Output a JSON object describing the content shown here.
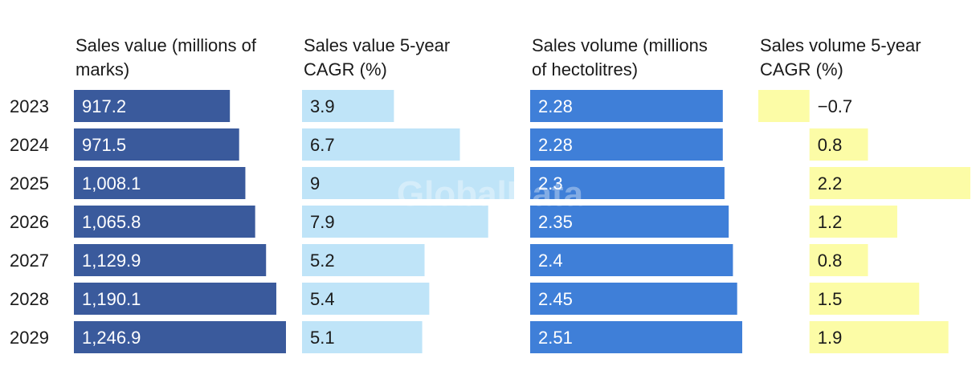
{
  "chart_data": {
    "type": "bar",
    "orientation": "horizontal",
    "categories": [
      "2023",
      "2024",
      "2025",
      "2026",
      "2027",
      "2028",
      "2029"
    ],
    "series": [
      {
        "name": "Sales value (millions of marks)",
        "header": [
          "Sales value (millions of",
          "marks)"
        ],
        "values": [
          917.2,
          971.5,
          1008.1,
          1065.8,
          1129.9,
          1190.1,
          1246.9
        ],
        "labels": [
          "917.2",
          "971.5",
          "1,008.1",
          "1,065.8",
          "1,129.9",
          "1,190.1",
          "1,246.9"
        ],
        "xlim": [
          0,
          1246.9
        ],
        "color": "#3a5a9c",
        "text_color": "#ffffff"
      },
      {
        "name": "Sales value 5-year CAGR (%)",
        "header": [
          "Sales value 5-year",
          "CAGR (%)"
        ],
        "values": [
          3.9,
          6.7,
          9,
          7.9,
          5.2,
          5.4,
          5.1
        ],
        "labels": [
          "3.9",
          "6.7",
          "9",
          "7.9",
          "5.2",
          "5.4",
          "5.1"
        ],
        "xlim": [
          0,
          9
        ],
        "color": "#bfe4f8",
        "text_color": "#1a1a1a"
      },
      {
        "name": "Sales volume (millions of hectolitres)",
        "header": [
          "Sales volume (millions",
          "of hectolitres)"
        ],
        "values": [
          2.28,
          2.28,
          2.3,
          2.35,
          2.4,
          2.45,
          2.51
        ],
        "labels": [
          "2.28",
          "2.28",
          "2.3",
          "2.35",
          "2.4",
          "2.45",
          "2.51"
        ],
        "xlim": [
          0,
          2.51
        ],
        "color": "#3f7fd8",
        "text_color": "#ffffff"
      },
      {
        "name": "Sales volume 5-year CAGR (%)",
        "header": [
          "Sales volume 5-year",
          "CAGR (%)"
        ],
        "values": [
          -0.7,
          0.8,
          2.2,
          1.2,
          0.8,
          1.5,
          1.9
        ],
        "labels": [
          "−0.7",
          "0.8",
          "2.2",
          "1.2",
          "0.8",
          "1.5",
          "1.9"
        ],
        "xlim": [
          -0.7,
          2.2
        ],
        "color": "#fcfca6",
        "text_color": "#1a1a1a"
      }
    ],
    "watermark": "GlobalData"
  }
}
